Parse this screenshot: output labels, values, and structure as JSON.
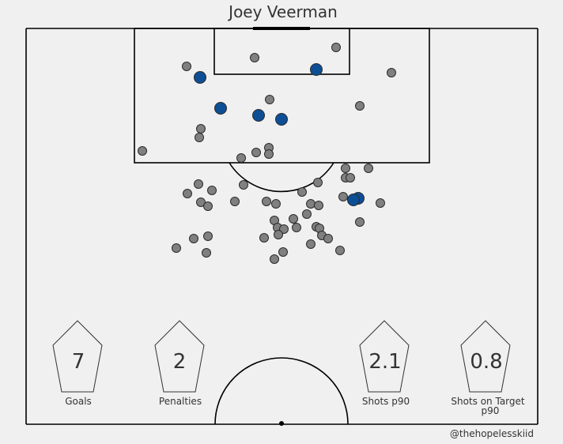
{
  "chart_data": {
    "type": "scatter",
    "title": "Joey Veerman",
    "xlabel": "",
    "ylabel": "",
    "legend": "none",
    "grid": false,
    "colors": {
      "shot": "#808080",
      "goal": "#0d4e95",
      "edge": "#2b2b2b",
      "pitch_line": "#000000",
      "background": "#f0f0f0"
    },
    "series": [
      {
        "outcome": "shot",
        "points": [
          [
            236,
            84
          ],
          [
            322,
            73
          ],
          [
            425,
            60
          ],
          [
            495,
            92
          ],
          [
            341,
            126
          ],
          [
            455,
            134
          ],
          [
            254,
            163
          ],
          [
            252,
            174
          ],
          [
            180,
            191
          ],
          [
            305,
            200
          ],
          [
            324,
            193
          ],
          [
            340,
            187
          ],
          [
            340,
            195
          ],
          [
            437,
            213
          ],
          [
            466,
            213
          ],
          [
            437,
            225
          ],
          [
            443,
            225
          ],
          [
            251,
            233
          ],
          [
            237,
            245
          ],
          [
            268,
            241
          ],
          [
            308,
            234
          ],
          [
            402,
            231
          ],
          [
            382,
            243
          ],
          [
            434,
            249
          ],
          [
            448,
            253
          ],
          [
            481,
            257
          ],
          [
            254,
            256
          ],
          [
            263,
            261
          ],
          [
            297,
            255
          ],
          [
            337,
            255
          ],
          [
            349,
            258
          ],
          [
            393,
            258
          ],
          [
            403,
            260
          ],
          [
            388,
            271
          ],
          [
            371,
            277
          ],
          [
            347,
            279
          ],
          [
            455,
            281
          ],
          [
            351,
            288
          ],
          [
            359,
            290
          ],
          [
            375,
            288
          ],
          [
            400,
            287
          ],
          [
            404,
            289
          ],
          [
            334,
            301
          ],
          [
            352,
            297
          ],
          [
            407,
            298
          ],
          [
            415,
            302
          ],
          [
            245,
            302
          ],
          [
            263,
            299
          ],
          [
            223,
            314
          ],
          [
            261,
            320
          ],
          [
            393,
            309
          ],
          [
            358,
            319
          ],
          [
            347,
            328
          ],
          [
            430,
            317
          ]
        ]
      },
      {
        "outcome": "goal",
        "points": [
          [
            253,
            98
          ],
          [
            400,
            88
          ],
          [
            279,
            137
          ],
          [
            327,
            146
          ],
          [
            356,
            151
          ],
          [
            453,
            251
          ],
          [
            447,
            253
          ]
        ]
      }
    ],
    "stats": [
      {
        "value": "7",
        "label": "Goals"
      },
      {
        "value": "2",
        "label": "Penalties"
      },
      {
        "value": "2.1",
        "label": "Shots p90"
      },
      {
        "value": "0.8",
        "label": "Shots on Target",
        "label2": "p90"
      }
    ],
    "credit": "@thehopelesskiid"
  }
}
